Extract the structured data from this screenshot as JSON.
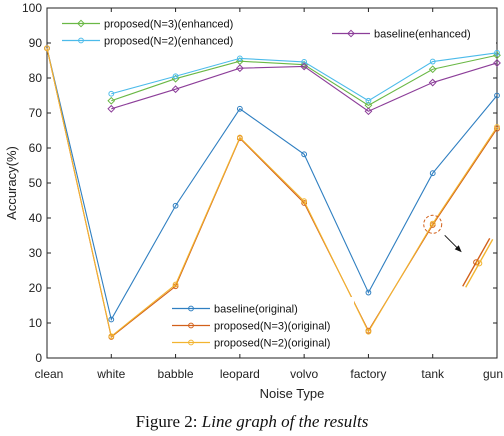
{
  "chart_data": {
    "type": "line",
    "title": "",
    "xlabel": "Noise Type",
    "ylabel": "Accuracy(%)",
    "categories": [
      "clean",
      "white",
      "babble",
      "leopard",
      "volvo",
      "factory",
      "tank",
      "gun"
    ],
    "ylim": [
      0,
      100
    ],
    "yticks": [
      0,
      10,
      20,
      30,
      40,
      50,
      60,
      70,
      80,
      90,
      100
    ],
    "grid": false,
    "series": [
      {
        "name": "baseline(original)",
        "color": "#2f7fc1",
        "marker": "circle",
        "values": [
          88.5,
          11,
          43.5,
          71.2,
          58.2,
          18.7,
          52.8,
          75
        ]
      },
      {
        "name": "proposed(N=3)(original)",
        "color": "#d2601a",
        "marker": "circle",
        "values": [
          88.5,
          6,
          20.5,
          62.8,
          44.3,
          7.8,
          38,
          65.5
        ]
      },
      {
        "name": "proposed(N=2)(original)",
        "color": "#f2b430",
        "marker": "circle",
        "values": [
          88.5,
          6.2,
          21,
          63,
          44.8,
          7.5,
          38.4,
          66
        ]
      },
      {
        "name": "proposed(N=3)(enhanced)",
        "color": "#6ab845",
        "marker": "diamond",
        "values": [
          null,
          73.5,
          79.8,
          84.8,
          83.8,
          72.2,
          82.5,
          86.5
        ]
      },
      {
        "name": "proposed(N=2)(enhanced)",
        "color": "#4cbbea",
        "marker": "circle",
        "values": [
          null,
          75.5,
          80.5,
          85.6,
          84.6,
          73.5,
          84.7,
          87.2
        ]
      },
      {
        "name": "baseline(enhanced)",
        "color": "#8c3e99",
        "marker": "diamond",
        "values": [
          null,
          71.2,
          76.8,
          82.8,
          83.3,
          70.5,
          78.7,
          84.3
        ]
      }
    ],
    "legends": [
      {
        "position": "top-left",
        "entries": [
          {
            "label": "proposed(N=3)(enhanced)",
            "color": "#6ab845",
            "marker": "diamond"
          },
          {
            "label": "proposed(N=2)(enhanced)",
            "color": "#4cbbea",
            "marker": "circle"
          }
        ]
      },
      {
        "position": "top-right",
        "entries": [
          {
            "label": "baseline(enhanced)",
            "color": "#8c3e99",
            "marker": "diamond"
          }
        ]
      },
      {
        "position": "bottom-center",
        "entries": [
          {
            "label": "baseline(original)",
            "color": "#2f7fc1",
            "marker": "circle"
          },
          {
            "label": "proposed(N=3)(original)",
            "color": "#d2601a",
            "marker": "circle"
          },
          {
            "label": "proposed(N=2)(original)",
            "color": "#f2b430",
            "marker": "circle"
          }
        ]
      }
    ],
    "annotation": {
      "type": "zoom-highlight",
      "category": "tank",
      "color": "#d2601a"
    }
  },
  "caption": {
    "figure_number": "Figure 2:",
    "title": "Line graph of the results"
  }
}
